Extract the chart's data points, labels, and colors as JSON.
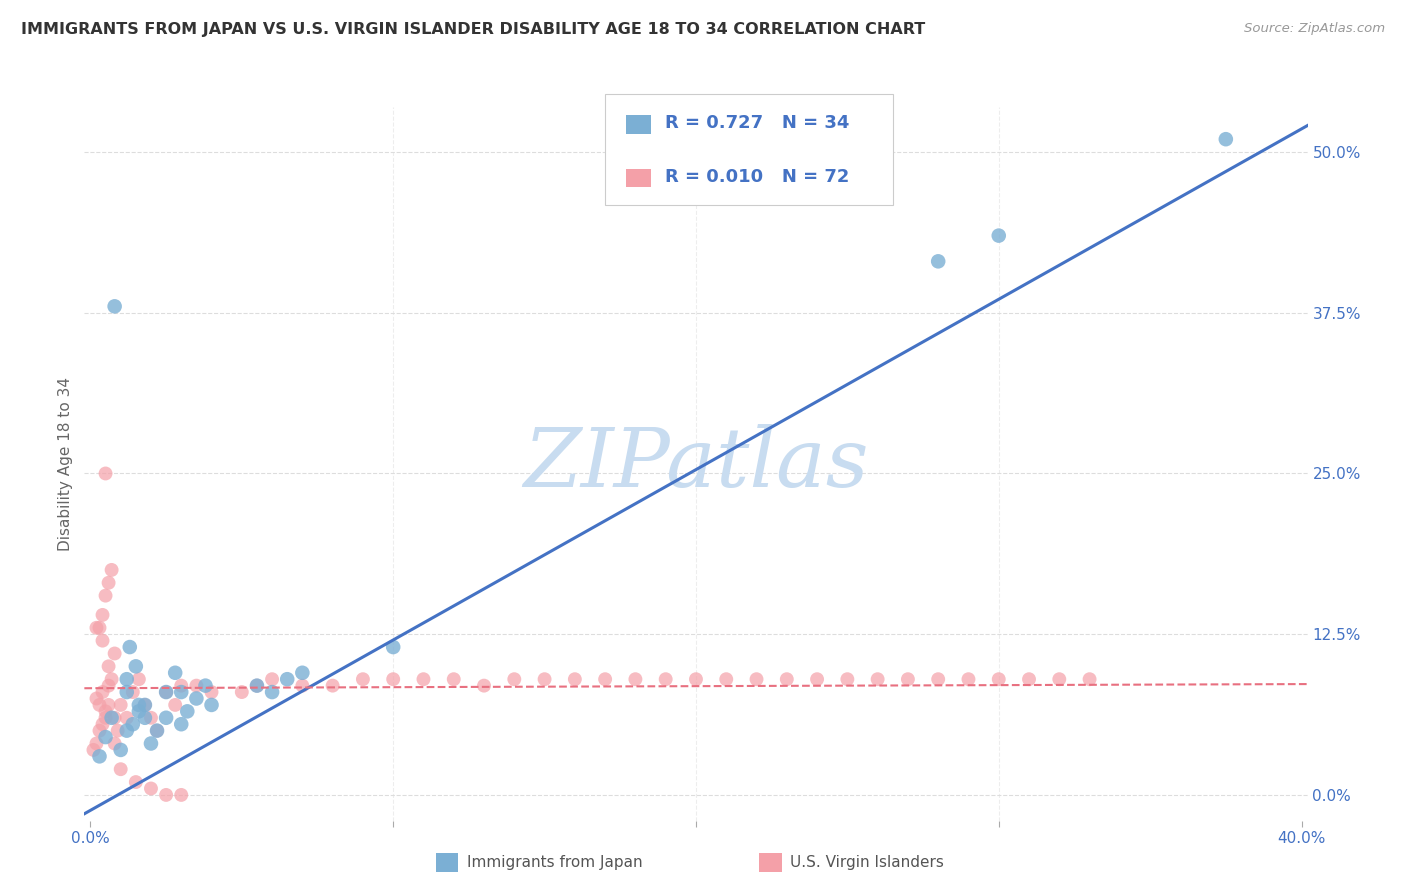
{
  "title": "IMMIGRANTS FROM JAPAN VS U.S. VIRGIN ISLANDER DISABILITY AGE 18 TO 34 CORRELATION CHART",
  "source": "Source: ZipAtlas.com",
  "ylabel": "Disability Age 18 to 34",
  "x_min": -0.002,
  "x_max": 0.402,
  "y_min": -0.02,
  "y_max": 0.535,
  "x_ticks": [
    0.0,
    0.1,
    0.2,
    0.3,
    0.4
  ],
  "x_tick_labels": [
    "0.0%",
    "",
    "",
    "",
    "40.0%"
  ],
  "y_ticks": [
    0.0,
    0.125,
    0.25,
    0.375,
    0.5
  ],
  "y_tick_labels": [
    "0.0%",
    "12.5%",
    "25.0%",
    "37.5%",
    "50.0%"
  ],
  "blue_color": "#7BAFD4",
  "pink_color": "#F4A0A8",
  "blue_line_color": "#4472C4",
  "pink_line_color": "#E87080",
  "text_color": "#4472C4",
  "watermark_color": "#C8DCF0",
  "legend_R_blue": "0.727",
  "legend_N_blue": "34",
  "legend_R_pink": "0.010",
  "legend_N_pink": "72",
  "blue_scatter_x": [
    0.003,
    0.005,
    0.007,
    0.01,
    0.012,
    0.014,
    0.016,
    0.018,
    0.012,
    0.015,
    0.013,
    0.02,
    0.022,
    0.018,
    0.016,
    0.025,
    0.028,
    0.03,
    0.032,
    0.035,
    0.038,
    0.04,
    0.025,
    0.03,
    0.008,
    0.012,
    0.06,
    0.065,
    0.07,
    0.055,
    0.1,
    0.28,
    0.3,
    0.375
  ],
  "blue_scatter_y": [
    0.03,
    0.045,
    0.06,
    0.035,
    0.05,
    0.055,
    0.065,
    0.07,
    0.09,
    0.1,
    0.115,
    0.04,
    0.05,
    0.06,
    0.07,
    0.08,
    0.095,
    0.055,
    0.065,
    0.075,
    0.085,
    0.07,
    0.06,
    0.08,
    0.38,
    0.08,
    0.08,
    0.09,
    0.095,
    0.085,
    0.115,
    0.415,
    0.435,
    0.51
  ],
  "pink_scatter_x": [
    0.001,
    0.002,
    0.003,
    0.004,
    0.005,
    0.003,
    0.002,
    0.004,
    0.006,
    0.007,
    0.008,
    0.005,
    0.006,
    0.003,
    0.004,
    0.005,
    0.006,
    0.007,
    0.008,
    0.009,
    0.01,
    0.012,
    0.014,
    0.016,
    0.018,
    0.02,
    0.022,
    0.025,
    0.028,
    0.03,
    0.035,
    0.04,
    0.05,
    0.055,
    0.06,
    0.07,
    0.08,
    0.09,
    0.1,
    0.11,
    0.12,
    0.13,
    0.14,
    0.15,
    0.16,
    0.17,
    0.18,
    0.19,
    0.2,
    0.21,
    0.22,
    0.23,
    0.24,
    0.25,
    0.26,
    0.27,
    0.28,
    0.29,
    0.3,
    0.31,
    0.32,
    0.33,
    0.005,
    0.01,
    0.015,
    0.02,
    0.025,
    0.03,
    0.002,
    0.004,
    0.006,
    0.008
  ],
  "pink_scatter_y": [
    0.035,
    0.04,
    0.05,
    0.055,
    0.06,
    0.07,
    0.075,
    0.08,
    0.085,
    0.09,
    0.06,
    0.065,
    0.07,
    0.13,
    0.14,
    0.155,
    0.165,
    0.175,
    0.04,
    0.05,
    0.07,
    0.06,
    0.08,
    0.09,
    0.07,
    0.06,
    0.05,
    0.08,
    0.07,
    0.085,
    0.085,
    0.08,
    0.08,
    0.085,
    0.09,
    0.085,
    0.085,
    0.09,
    0.09,
    0.09,
    0.09,
    0.085,
    0.09,
    0.09,
    0.09,
    0.09,
    0.09,
    0.09,
    0.09,
    0.09,
    0.09,
    0.09,
    0.09,
    0.09,
    0.09,
    0.09,
    0.09,
    0.09,
    0.09,
    0.09,
    0.09,
    0.09,
    0.25,
    0.02,
    0.01,
    0.005,
    0.0,
    0.0,
    0.13,
    0.12,
    0.1,
    0.11
  ],
  "blue_line_x": [
    -0.002,
    0.402
  ],
  "blue_line_y_intercept": -0.012,
  "blue_line_slope": 1.325,
  "pink_line_x": [
    -0.002,
    0.402
  ],
  "pink_line_y_intercept": 0.083,
  "pink_line_slope": 0.008,
  "background_color": "#FFFFFF",
  "grid_color": "#DDDDDD"
}
